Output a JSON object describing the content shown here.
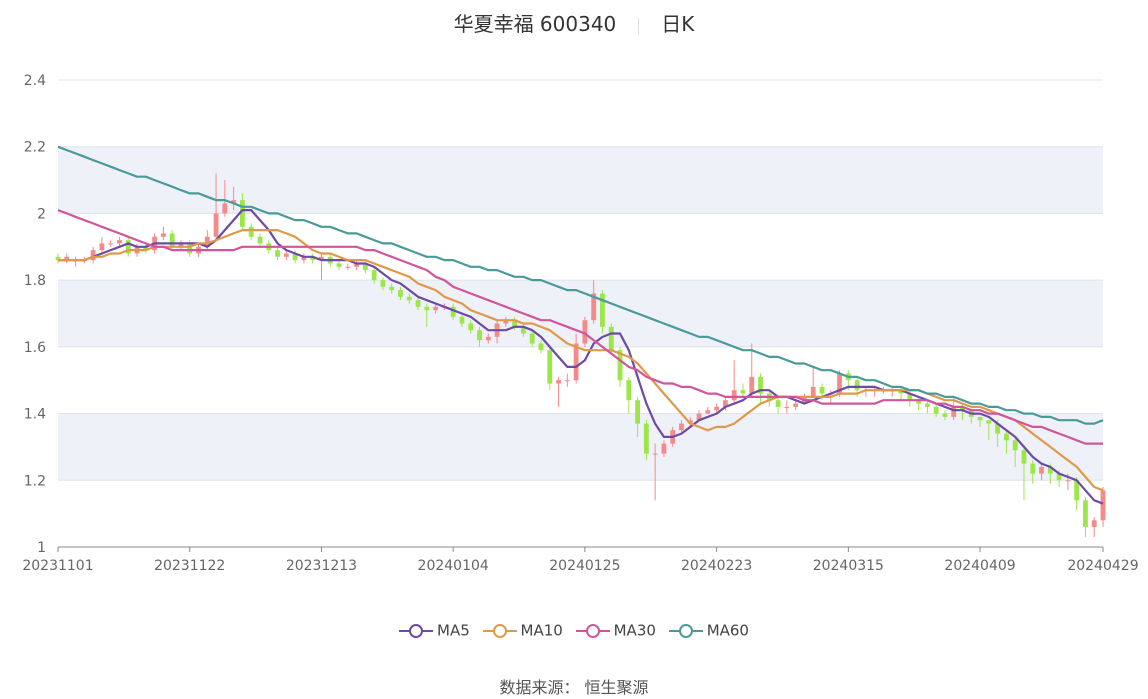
{
  "title": {
    "name": "华夏幸福 600340",
    "period": "日K"
  },
  "source": "数据来源： 恒生聚源",
  "colors": {
    "up": "#f58a8a",
    "down": "#9ce64a",
    "MA5": "#6c4aa8",
    "MA10": "#e0994a",
    "MA30": "#d0559c",
    "MA60": "#4a9a9a",
    "band": "#eef1f8",
    "grid": "#e0e3ea"
  },
  "chart_data": {
    "type": "candlestick",
    "ylim": [
      1,
      2.4
    ],
    "yticks": [
      1,
      1.2,
      1.4,
      1.6,
      1.8,
      2,
      2.2,
      2.4
    ],
    "ytick_labels": [
      "1",
      "1.2",
      "1.4",
      "1.6",
      "1.8",
      "2",
      "2.2",
      "2.4"
    ],
    "x_tick_labels": [
      "20231101",
      "20231122",
      "20231213",
      "20240104",
      "20240125",
      "20240223",
      "20240315",
      "20240409",
      "20240429"
    ],
    "x_tick_indices": [
      0,
      15,
      30,
      45,
      60,
      75,
      90,
      105,
      119
    ],
    "n": 120,
    "legend": [
      "MA5",
      "MA10",
      "MA30",
      "MA60"
    ],
    "candles": {
      "open": [
        1.87,
        1.86,
        1.86,
        1.86,
        1.86,
        1.89,
        1.91,
        1.91,
        1.92,
        1.88,
        1.9,
        1.89,
        1.93,
        1.94,
        1.9,
        1.91,
        1.88,
        1.9,
        1.93,
        2.0,
        2.03,
        2.04,
        1.96,
        1.93,
        1.91,
        1.89,
        1.87,
        1.88,
        1.86,
        1.87,
        1.86,
        1.87,
        1.85,
        1.84,
        1.84,
        1.85,
        1.83,
        1.8,
        1.78,
        1.77,
        1.75,
        1.74,
        1.72,
        1.71,
        1.72,
        1.72,
        1.69,
        1.67,
        1.65,
        1.62,
        1.63,
        1.67,
        1.68,
        1.66,
        1.64,
        1.61,
        1.59,
        1.49,
        1.5,
        1.5,
        1.61,
        1.68,
        1.76,
        1.66,
        1.59,
        1.5,
        1.44,
        1.37,
        1.28,
        1.28,
        1.31,
        1.35,
        1.37,
        1.38,
        1.4,
        1.41,
        1.42,
        1.44,
        1.47,
        1.46,
        1.51,
        1.46,
        1.44,
        1.42,
        1.42,
        1.43,
        1.45,
        1.48,
        1.46,
        1.46,
        1.52,
        1.5,
        1.47,
        1.47,
        1.47,
        1.47,
        1.47,
        1.46,
        1.44,
        1.43,
        1.42,
        1.4,
        1.39,
        1.42,
        1.41,
        1.39,
        1.38,
        1.37,
        1.34,
        1.32,
        1.29,
        1.25,
        1.22,
        1.24,
        1.22,
        1.2,
        1.2,
        1.14,
        1.06,
        1.08
      ],
      "close": [
        1.86,
        1.87,
        1.86,
        1.86,
        1.89,
        1.91,
        1.91,
        1.92,
        1.88,
        1.9,
        1.89,
        1.93,
        1.94,
        1.9,
        1.91,
        1.88,
        1.9,
        1.93,
        2.0,
        2.03,
        2.04,
        1.96,
        1.93,
        1.91,
        1.89,
        1.87,
        1.88,
        1.86,
        1.87,
        1.86,
        1.87,
        1.85,
        1.84,
        1.84,
        1.85,
        1.83,
        1.8,
        1.78,
        1.77,
        1.75,
        1.74,
        1.72,
        1.71,
        1.72,
        1.72,
        1.69,
        1.67,
        1.65,
        1.62,
        1.63,
        1.67,
        1.68,
        1.66,
        1.64,
        1.61,
        1.59,
        1.49,
        1.5,
        1.5,
        1.61,
        1.68,
        1.76,
        1.66,
        1.59,
        1.5,
        1.44,
        1.37,
        1.28,
        1.28,
        1.31,
        1.35,
        1.37,
        1.38,
        1.4,
        1.41,
        1.42,
        1.44,
        1.47,
        1.46,
        1.51,
        1.46,
        1.44,
        1.42,
        1.42,
        1.43,
        1.45,
        1.48,
        1.46,
        1.46,
        1.52,
        1.5,
        1.47,
        1.47,
        1.47,
        1.47,
        1.47,
        1.46,
        1.44,
        1.43,
        1.42,
        1.4,
        1.39,
        1.42,
        1.41,
        1.39,
        1.38,
        1.37,
        1.34,
        1.32,
        1.29,
        1.25,
        1.22,
        1.24,
        1.22,
        1.2,
        1.2,
        1.14,
        1.06,
        1.08,
        1.17
      ],
      "high": [
        1.88,
        1.88,
        1.87,
        1.87,
        1.9,
        1.93,
        1.92,
        1.93,
        1.93,
        1.91,
        1.91,
        1.94,
        1.96,
        1.95,
        1.92,
        1.92,
        1.91,
        1.95,
        2.12,
        2.1,
        2.08,
        2.06,
        1.97,
        1.94,
        1.92,
        1.9,
        1.89,
        1.89,
        1.88,
        1.88,
        1.88,
        1.88,
        1.86,
        1.85,
        1.86,
        1.86,
        1.84,
        1.81,
        1.79,
        1.78,
        1.76,
        1.75,
        1.73,
        1.73,
        1.73,
        1.73,
        1.7,
        1.68,
        1.66,
        1.64,
        1.68,
        1.69,
        1.69,
        1.67,
        1.65,
        1.62,
        1.6,
        1.51,
        1.52,
        1.64,
        1.69,
        1.8,
        1.77,
        1.67,
        1.6,
        1.51,
        1.45,
        1.38,
        1.31,
        1.32,
        1.36,
        1.38,
        1.39,
        1.41,
        1.42,
        1.43,
        1.45,
        1.56,
        1.49,
        1.61,
        1.52,
        1.47,
        1.45,
        1.44,
        1.44,
        1.46,
        1.54,
        1.49,
        1.47,
        1.53,
        1.53,
        1.51,
        1.48,
        1.48,
        1.48,
        1.48,
        1.48,
        1.47,
        1.45,
        1.44,
        1.43,
        1.41,
        1.45,
        1.43,
        1.41,
        1.39,
        1.38,
        1.38,
        1.35,
        1.33,
        1.3,
        1.26,
        1.25,
        1.25,
        1.23,
        1.22,
        1.21,
        1.15,
        1.09,
        1.18
      ],
      "low": [
        1.85,
        1.85,
        1.84,
        1.85,
        1.85,
        1.88,
        1.9,
        1.9,
        1.87,
        1.87,
        1.88,
        1.88,
        1.92,
        1.89,
        1.89,
        1.87,
        1.87,
        1.89,
        1.92,
        1.99,
        2.01,
        1.95,
        1.92,
        1.9,
        1.88,
        1.86,
        1.86,
        1.85,
        1.85,
        1.85,
        1.8,
        1.84,
        1.83,
        1.83,
        1.83,
        1.82,
        1.79,
        1.77,
        1.76,
        1.74,
        1.73,
        1.71,
        1.66,
        1.7,
        1.71,
        1.68,
        1.66,
        1.64,
        1.6,
        1.61,
        1.61,
        1.66,
        1.65,
        1.63,
        1.6,
        1.58,
        1.47,
        1.42,
        1.48,
        1.49,
        1.6,
        1.67,
        1.64,
        1.58,
        1.48,
        1.4,
        1.33,
        1.26,
        1.14,
        1.27,
        1.3,
        1.34,
        1.36,
        1.38,
        1.4,
        1.4,
        1.41,
        1.43,
        1.45,
        1.45,
        1.43,
        1.42,
        1.4,
        1.4,
        1.41,
        1.43,
        1.45,
        1.44,
        1.43,
        1.45,
        1.47,
        1.45,
        1.45,
        1.45,
        1.46,
        1.45,
        1.44,
        1.42,
        1.41,
        1.4,
        1.39,
        1.38,
        1.38,
        1.38,
        1.37,
        1.36,
        1.32,
        1.3,
        1.28,
        1.24,
        1.14,
        1.19,
        1.2,
        1.19,
        1.18,
        1.17,
        1.11,
        1.03,
        1.03,
        1.06
      ]
    },
    "series": [
      {
        "name": "MA5",
        "values": [
          1.86,
          1.86,
          1.86,
          1.86,
          1.87,
          1.88,
          1.89,
          1.9,
          1.91,
          1.9,
          1.9,
          1.91,
          1.91,
          1.91,
          1.91,
          1.91,
          1.91,
          1.9,
          1.92,
          1.95,
          1.98,
          2.01,
          2.01,
          1.98,
          1.95,
          1.91,
          1.89,
          1.88,
          1.87,
          1.87,
          1.86,
          1.86,
          1.86,
          1.86,
          1.85,
          1.85,
          1.84,
          1.82,
          1.8,
          1.79,
          1.77,
          1.75,
          1.74,
          1.73,
          1.72,
          1.71,
          1.7,
          1.69,
          1.67,
          1.65,
          1.65,
          1.65,
          1.66,
          1.66,
          1.65,
          1.63,
          1.6,
          1.57,
          1.54,
          1.54,
          1.56,
          1.61,
          1.63,
          1.64,
          1.64,
          1.59,
          1.51,
          1.43,
          1.37,
          1.33,
          1.33,
          1.34,
          1.36,
          1.38,
          1.39,
          1.4,
          1.42,
          1.43,
          1.44,
          1.46,
          1.47,
          1.47,
          1.45,
          1.45,
          1.44,
          1.43,
          1.44,
          1.45,
          1.46,
          1.47,
          1.48,
          1.48,
          1.48,
          1.48,
          1.47,
          1.47,
          1.47,
          1.46,
          1.45,
          1.44,
          1.43,
          1.42,
          1.41,
          1.41,
          1.4,
          1.4,
          1.39,
          1.37,
          1.35,
          1.33,
          1.3,
          1.27,
          1.25,
          1.24,
          1.22,
          1.21,
          1.2,
          1.17,
          1.14,
          1.13
        ]
      },
      {
        "name": "MA10",
        "values": [
          1.86,
          1.86,
          1.86,
          1.86,
          1.87,
          1.87,
          1.88,
          1.88,
          1.89,
          1.89,
          1.89,
          1.9,
          1.9,
          1.9,
          1.9,
          1.9,
          1.91,
          1.91,
          1.92,
          1.93,
          1.94,
          1.95,
          1.95,
          1.95,
          1.95,
          1.95,
          1.94,
          1.93,
          1.91,
          1.89,
          1.88,
          1.88,
          1.87,
          1.86,
          1.86,
          1.86,
          1.85,
          1.84,
          1.83,
          1.82,
          1.81,
          1.79,
          1.78,
          1.77,
          1.75,
          1.74,
          1.73,
          1.71,
          1.7,
          1.69,
          1.68,
          1.68,
          1.68,
          1.67,
          1.67,
          1.66,
          1.65,
          1.63,
          1.61,
          1.6,
          1.59,
          1.59,
          1.59,
          1.59,
          1.58,
          1.57,
          1.55,
          1.52,
          1.49,
          1.46,
          1.43,
          1.4,
          1.37,
          1.36,
          1.35,
          1.36,
          1.36,
          1.37,
          1.39,
          1.41,
          1.43,
          1.44,
          1.45,
          1.45,
          1.45,
          1.45,
          1.45,
          1.45,
          1.45,
          1.46,
          1.46,
          1.46,
          1.47,
          1.47,
          1.47,
          1.47,
          1.47,
          1.47,
          1.47,
          1.46,
          1.45,
          1.44,
          1.44,
          1.43,
          1.42,
          1.42,
          1.41,
          1.4,
          1.39,
          1.38,
          1.36,
          1.34,
          1.32,
          1.3,
          1.28,
          1.26,
          1.24,
          1.21,
          1.18,
          1.17
        ]
      },
      {
        "name": "MA30",
        "values": [
          2.01,
          2.0,
          1.99,
          1.98,
          1.97,
          1.96,
          1.95,
          1.94,
          1.93,
          1.92,
          1.91,
          1.9,
          1.9,
          1.89,
          1.89,
          1.89,
          1.89,
          1.89,
          1.89,
          1.89,
          1.89,
          1.9,
          1.9,
          1.9,
          1.9,
          1.9,
          1.9,
          1.9,
          1.9,
          1.9,
          1.9,
          1.9,
          1.9,
          1.9,
          1.9,
          1.89,
          1.89,
          1.88,
          1.87,
          1.86,
          1.85,
          1.84,
          1.83,
          1.81,
          1.8,
          1.78,
          1.77,
          1.76,
          1.75,
          1.74,
          1.73,
          1.72,
          1.71,
          1.7,
          1.69,
          1.68,
          1.68,
          1.67,
          1.66,
          1.65,
          1.64,
          1.62,
          1.6,
          1.58,
          1.56,
          1.54,
          1.53,
          1.51,
          1.5,
          1.49,
          1.49,
          1.48,
          1.48,
          1.47,
          1.46,
          1.46,
          1.45,
          1.45,
          1.45,
          1.45,
          1.45,
          1.45,
          1.45,
          1.45,
          1.45,
          1.44,
          1.44,
          1.43,
          1.43,
          1.43,
          1.43,
          1.43,
          1.43,
          1.43,
          1.44,
          1.44,
          1.44,
          1.44,
          1.44,
          1.44,
          1.43,
          1.43,
          1.42,
          1.42,
          1.41,
          1.41,
          1.4,
          1.4,
          1.39,
          1.38,
          1.37,
          1.36,
          1.36,
          1.35,
          1.34,
          1.33,
          1.32,
          1.31,
          1.31,
          1.31
        ]
      },
      {
        "name": "MA60",
        "values": [
          2.2,
          2.19,
          2.18,
          2.17,
          2.16,
          2.15,
          2.14,
          2.13,
          2.12,
          2.11,
          2.11,
          2.1,
          2.09,
          2.08,
          2.07,
          2.06,
          2.06,
          2.05,
          2.04,
          2.04,
          2.03,
          2.02,
          2.02,
          2.01,
          2.0,
          2.0,
          1.99,
          1.98,
          1.98,
          1.97,
          1.96,
          1.96,
          1.95,
          1.94,
          1.94,
          1.93,
          1.92,
          1.91,
          1.91,
          1.9,
          1.89,
          1.88,
          1.87,
          1.87,
          1.86,
          1.86,
          1.85,
          1.84,
          1.84,
          1.83,
          1.83,
          1.82,
          1.81,
          1.81,
          1.8,
          1.8,
          1.79,
          1.78,
          1.77,
          1.77,
          1.76,
          1.75,
          1.74,
          1.73,
          1.72,
          1.71,
          1.7,
          1.69,
          1.68,
          1.67,
          1.66,
          1.65,
          1.64,
          1.63,
          1.63,
          1.62,
          1.61,
          1.6,
          1.59,
          1.59,
          1.58,
          1.57,
          1.57,
          1.56,
          1.55,
          1.55,
          1.54,
          1.53,
          1.53,
          1.52,
          1.51,
          1.51,
          1.5,
          1.5,
          1.49,
          1.48,
          1.48,
          1.47,
          1.47,
          1.46,
          1.46,
          1.45,
          1.45,
          1.44,
          1.43,
          1.43,
          1.42,
          1.42,
          1.41,
          1.41,
          1.4,
          1.4,
          1.39,
          1.39,
          1.38,
          1.38,
          1.38,
          1.37,
          1.37,
          1.38
        ]
      }
    ]
  }
}
